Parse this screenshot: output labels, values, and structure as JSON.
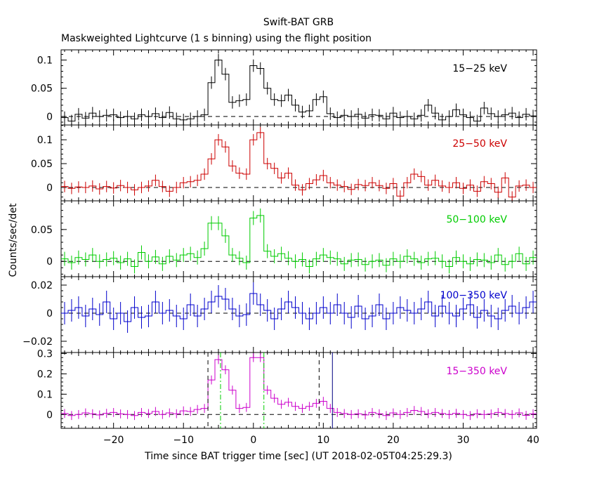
{
  "title_line1": "Swift-BAT GRB",
  "title_line2": "Maskweighted Lightcurve (1 s binning) using the flight position",
  "colors": {
    "axes": "#000000",
    "dash": "#000000",
    "guide_green": "#00cc00",
    "guide_navy": "#000080"
  },
  "chart_data": {
    "type": "line",
    "subtype": "step-with-errorbars",
    "xlabel": "Time since BAT trigger time [sec] (UT 2018-02-05T04:25:29.3)",
    "ylabel": "Counts/sec/det",
    "xlim": [
      -27.5,
      40.5
    ],
    "x_ticks": [
      -20,
      -10,
      0,
      10,
      20,
      30,
      40
    ],
    "x_tick_labels": [
      "−20",
      "−10",
      "0",
      "10",
      "20",
      "30",
      "40"
    ],
    "x": [
      -27,
      -26,
      -25,
      -24,
      -23,
      -22,
      -21,
      -20,
      -19,
      -18,
      -17,
      -16,
      -15,
      -14,
      -13,
      -12,
      -11,
      -10,
      -9,
      -8,
      -7,
      -6,
      -5,
      -4,
      -3,
      -2,
      -1,
      0,
      1,
      2,
      3,
      4,
      5,
      6,
      7,
      8,
      9,
      10,
      11,
      12,
      13,
      14,
      15,
      16,
      17,
      18,
      19,
      20,
      21,
      22,
      23,
      24,
      25,
      26,
      27,
      28,
      29,
      30,
      31,
      32,
      33,
      34,
      35,
      36,
      37,
      38,
      39,
      40
    ],
    "panels": [
      {
        "label": "15−25 keV",
        "color": "#000000",
        "ylim": [
          -0.015,
          0.118
        ],
        "yticks": [
          0,
          0.05,
          0.1
        ],
        "ytick_labels": [
          "0",
          "0.05",
          "0.1"
        ],
        "values": [
          -0.002,
          -0.008,
          0.004,
          -0.003,
          0.006,
          0.0,
          0.002,
          0.003,
          -0.002,
          0.0,
          -0.004,
          0.003,
          0.0,
          0.005,
          -0.002,
          0.007,
          -0.004,
          -0.006,
          -0.004,
          0.0,
          0.003,
          0.06,
          0.1,
          0.075,
          0.025,
          0.028,
          0.03,
          0.09,
          0.085,
          0.05,
          0.03,
          0.028,
          0.038,
          0.02,
          0.008,
          0.01,
          0.03,
          0.035,
          0.005,
          -0.002,
          0.002,
          0.0,
          0.004,
          -0.003,
          0.003,
          0.002,
          -0.004,
          0.006,
          -0.002,
          0.0,
          -0.004,
          0.002,
          0.02,
          0.006,
          -0.006,
          0.0,
          0.012,
          0.003,
          -0.002,
          -0.008,
          0.015,
          0.005,
          0.0,
          0.003,
          0.006,
          -0.002,
          0.004,
          0.001
        ],
        "err": 0.011
      },
      {
        "label": "25−50 keV",
        "color": "#cc0000",
        "ylim": [
          -0.028,
          0.131
        ],
        "yticks": [
          0,
          0.05,
          0.1
        ],
        "ytick_labels": [
          "0",
          "0.05",
          "0.1"
        ],
        "values": [
          0.002,
          -0.002,
          0.001,
          0.0,
          0.003,
          -0.003,
          0.002,
          -0.001,
          0.004,
          0.0,
          -0.005,
          0.0,
          0.003,
          0.015,
          0.002,
          -0.008,
          0.0,
          0.01,
          0.012,
          0.015,
          0.028,
          0.06,
          0.1,
          0.085,
          0.045,
          0.03,
          0.028,
          0.1,
          0.115,
          0.05,
          0.04,
          0.02,
          0.03,
          0.005,
          -0.005,
          0.008,
          0.016,
          0.025,
          0.01,
          0.005,
          0.002,
          -0.004,
          0.006,
          0.004,
          0.01,
          0.004,
          -0.002,
          0.008,
          -0.018,
          0.01,
          0.028,
          0.023,
          0.005,
          0.015,
          0.003,
          0.0,
          0.01,
          -0.002,
          0.005,
          -0.008,
          0.012,
          0.008,
          -0.01,
          0.02,
          -0.02,
          0.003,
          0.005,
          0.0
        ],
        "err": 0.012
      },
      {
        "label": "50−100 keV",
        "color": "#00cc00",
        "ylim": [
          -0.024,
          0.095
        ],
        "yticks": [
          0,
          0.05
        ],
        "ytick_labels": [
          "0",
          "0.05"
        ],
        "values": [
          0.004,
          -0.002,
          0.006,
          0.003,
          0.01,
          0.0,
          0.003,
          0.005,
          -0.002,
          0.004,
          -0.008,
          0.014,
          0.0,
          0.007,
          -0.004,
          0.008,
          0.002,
          0.01,
          0.012,
          0.006,
          0.02,
          0.06,
          0.06,
          0.04,
          0.01,
          0.005,
          -0.002,
          0.068,
          0.072,
          0.016,
          0.008,
          0.012,
          0.005,
          0.0,
          0.003,
          -0.008,
          0.004,
          0.01,
          0.006,
          0.004,
          -0.004,
          0.002,
          0.003,
          -0.005,
          0.0,
          0.002,
          -0.006,
          0.004,
          0.0,
          0.008,
          0.004,
          -0.002,
          0.004,
          0.005,
          0.0,
          -0.008,
          0.006,
          0.0,
          -0.004,
          0.003,
          0.002,
          -0.002,
          0.01,
          -0.005,
          0.0,
          0.012,
          -0.004,
          0.006
        ],
        "err": 0.011
      },
      {
        "label": "100−350 keV",
        "color": "#0000cc",
        "ylim": [
          -0.028,
          0.026
        ],
        "yticks": [
          -0.02,
          0,
          0.02
        ],
        "ytick_labels": [
          "−0.02",
          "0",
          "0.02"
        ],
        "values": [
          0.0,
          0.002,
          0.004,
          -0.002,
          0.003,
          -0.001,
          0.008,
          -0.004,
          0.0,
          -0.006,
          0.004,
          -0.003,
          -0.002,
          0.008,
          0.0,
          0.002,
          -0.002,
          -0.004,
          0.006,
          -0.002,
          0.003,
          0.008,
          0.012,
          0.01,
          0.003,
          -0.002,
          -0.001,
          0.014,
          0.006,
          0.002,
          -0.004,
          0.003,
          0.008,
          0.004,
          0.0,
          -0.004,
          0.0,
          0.004,
          0.0,
          0.006,
          0.0,
          -0.003,
          0.005,
          -0.004,
          -0.002,
          0.006,
          -0.004,
          0.0,
          0.004,
          0.002,
          0.0,
          0.003,
          0.008,
          -0.002,
          0.005,
          0.0,
          -0.002,
          0.003,
          0.006,
          -0.003,
          0.002,
          -0.002,
          -0.004,
          0.002,
          0.005,
          0.0,
          0.004,
          0.008
        ],
        "err": 0.008
      },
      {
        "label": "15−350 keV",
        "color": "#cc00cc",
        "ylim": [
          -0.068,
          0.305
        ],
        "yticks": [
          0,
          0.1,
          0.2,
          0.3
        ],
        "ytick_labels": [
          "0",
          "0.1",
          "0.2",
          "0.3"
        ],
        "values": [
          0.005,
          -0.005,
          0.0,
          0.008,
          0.004,
          -0.002,
          0.006,
          0.01,
          0.003,
          0.0,
          -0.005,
          0.01,
          0.005,
          0.015,
          0.0,
          0.008,
          0.004,
          0.018,
          0.015,
          0.025,
          0.03,
          0.17,
          0.27,
          0.22,
          0.12,
          0.03,
          0.035,
          0.28,
          0.28,
          0.12,
          0.08,
          0.05,
          0.06,
          0.04,
          0.03,
          0.04,
          0.055,
          0.065,
          0.03,
          0.01,
          0.005,
          0.0,
          0.004,
          -0.002,
          0.01,
          0.004,
          -0.005,
          0.008,
          0.0,
          0.01,
          0.02,
          0.015,
          0.004,
          0.01,
          0.005,
          0.0,
          0.006,
          0.0,
          -0.005,
          0.004,
          0.0,
          0.003,
          0.01,
          0.005,
          0.0,
          0.008,
          -0.004,
          0.004
        ],
        "err": 0.022,
        "guides": [
          {
            "x": -6.5,
            "style": "dashed",
            "color": "#000000"
          },
          {
            "x": -4.7,
            "style": "dashdot",
            "color": "#00cc00"
          },
          {
            "x": 1.5,
            "style": "dashdot",
            "color": "#00cc00"
          },
          {
            "x": 9.4,
            "style": "dashed",
            "color": "#000000"
          },
          {
            "x": 11.3,
            "style": "solid",
            "color": "#000080"
          }
        ]
      }
    ]
  }
}
